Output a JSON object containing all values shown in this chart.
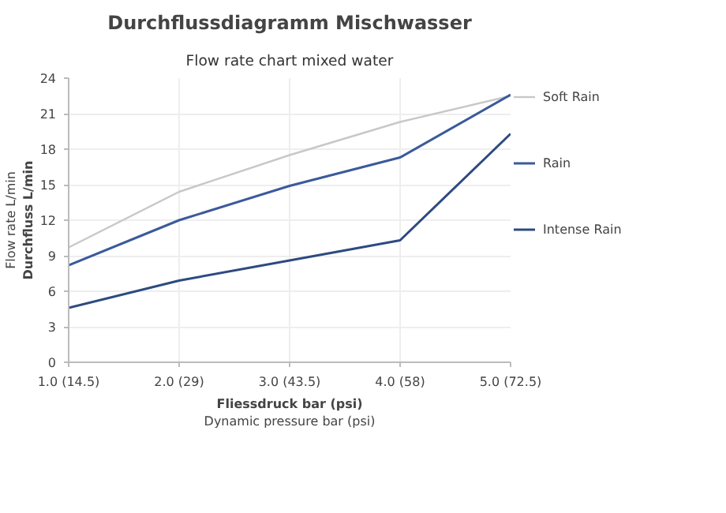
{
  "chart_data": {
    "type": "line",
    "title": "Durchflussdiagramm Mischwasser",
    "subtitle": "Flow rate chart mixed water",
    "xlabel": "Fliessdruck bar (psi)\nDynamic pressure bar (psi)",
    "ylabel": "Durchfluss L/min\nFlow rate L/min",
    "categories": [
      "1.0 (14.5)",
      "2.0 (29)",
      "3.0 (43.5)",
      "4.0 (58)",
      "5.0 (72.5)"
    ],
    "series": [
      {
        "name": "Soft Rain",
        "color": "#c8c8c8",
        "values": [
          9.7,
          14.4,
          17.5,
          20.3,
          22.5
        ]
      },
      {
        "name": "Rain",
        "color": "#3a5a9a",
        "values": [
          8.2,
          12.0,
          14.9,
          17.3,
          22.6
        ]
      },
      {
        "name": "Intense Rain",
        "color": "#2e4a80",
        "values": [
          4.6,
          6.9,
          8.6,
          10.3,
          19.3
        ]
      }
    ],
    "ylim": [
      0,
      24
    ],
    "yticks": [
      0,
      3,
      6,
      9,
      12,
      15,
      18,
      21,
      24
    ],
    "grid": true,
    "legend": "right",
    "marker": "none",
    "line_style": "solid"
  }
}
